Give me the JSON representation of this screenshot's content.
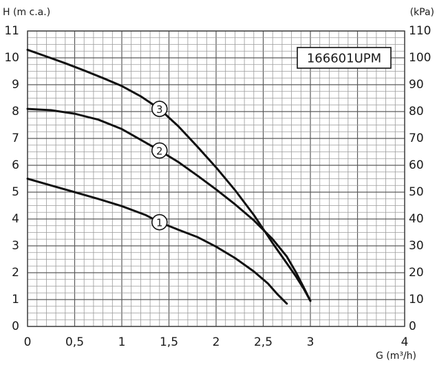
{
  "chart_data": {
    "type": "line",
    "model_label": "166601UPM",
    "y_axis_label": "H (m c.a.)",
    "y2_axis_label": "(kPa)",
    "x_axis_label": "G (m³/h)",
    "xlim": [
      0,
      4
    ],
    "ylim": [
      0,
      11
    ],
    "y2lim": [
      0,
      110
    ],
    "grid": true,
    "x_ticks": [
      {
        "value": 0,
        "label": "0"
      },
      {
        "value": 0.5,
        "label": "0,5"
      },
      {
        "value": 1,
        "label": "1"
      },
      {
        "value": 1.5,
        "label": "1,5"
      },
      {
        "value": 2,
        "label": "2"
      },
      {
        "value": 2.5,
        "label": "2,5"
      },
      {
        "value": 3,
        "label": "3"
      },
      {
        "value": 4,
        "label": "4"
      }
    ],
    "y_ticks": [
      {
        "value": 0,
        "label": "0"
      },
      {
        "value": 1,
        "label": "1"
      },
      {
        "value": 2,
        "label": "2"
      },
      {
        "value": 3,
        "label": "3"
      },
      {
        "value": 4,
        "label": "4"
      },
      {
        "value": 5,
        "label": "5"
      },
      {
        "value": 6,
        "label": "6"
      },
      {
        "value": 7,
        "label": "7"
      },
      {
        "value": 8,
        "label": "8"
      },
      {
        "value": 9,
        "label": "9"
      },
      {
        "value": 10,
        "label": "10"
      },
      {
        "value": 11,
        "label": "11"
      }
    ],
    "y2_ticks": [
      {
        "value": 0,
        "label": "0"
      },
      {
        "value": 10,
        "label": "10"
      },
      {
        "value": 20,
        "label": "20"
      },
      {
        "value": 30,
        "label": "30"
      },
      {
        "value": 40,
        "label": "40"
      },
      {
        "value": 50,
        "label": "50"
      },
      {
        "value": 60,
        "label": "60"
      },
      {
        "value": 70,
        "label": "70"
      },
      {
        "value": 80,
        "label": "80"
      },
      {
        "value": 90,
        "label": "90"
      },
      {
        "value": 100,
        "label": "100"
      },
      {
        "value": 110,
        "label": "110"
      }
    ],
    "series": [
      {
        "marker": "1",
        "marker_at": [
          1.4,
          3.88
        ],
        "points": [
          [
            0,
            5.5
          ],
          [
            0.25,
            5.25
          ],
          [
            0.5,
            5.0
          ],
          [
            0.75,
            4.75
          ],
          [
            1.0,
            4.48
          ],
          [
            1.25,
            4.15
          ],
          [
            1.4,
            3.88
          ],
          [
            1.6,
            3.6
          ],
          [
            1.8,
            3.33
          ],
          [
            2.0,
            2.97
          ],
          [
            2.2,
            2.55
          ],
          [
            2.4,
            2.05
          ],
          [
            2.55,
            1.6
          ],
          [
            2.65,
            1.2
          ],
          [
            2.75,
            0.85
          ]
        ]
      },
      {
        "marker": "2",
        "marker_at": [
          1.4,
          6.55
        ],
        "points": [
          [
            0,
            8.1
          ],
          [
            0.25,
            8.05
          ],
          [
            0.5,
            7.92
          ],
          [
            0.75,
            7.7
          ],
          [
            1.0,
            7.35
          ],
          [
            1.2,
            6.95
          ],
          [
            1.4,
            6.55
          ],
          [
            1.6,
            6.12
          ],
          [
            1.8,
            5.62
          ],
          [
            2.0,
            5.1
          ],
          [
            2.2,
            4.55
          ],
          [
            2.4,
            3.95
          ],
          [
            2.6,
            3.25
          ],
          [
            2.75,
            2.6
          ],
          [
            2.85,
            2.0
          ],
          [
            2.93,
            1.45
          ],
          [
            3.0,
            0.95
          ]
        ]
      },
      {
        "marker": "3",
        "marker_at": [
          1.4,
          8.1
        ],
        "points": [
          [
            0,
            10.3
          ],
          [
            0.2,
            10.05
          ],
          [
            0.4,
            9.8
          ],
          [
            0.6,
            9.53
          ],
          [
            0.8,
            9.25
          ],
          [
            1.0,
            8.95
          ],
          [
            1.2,
            8.57
          ],
          [
            1.4,
            8.1
          ],
          [
            1.6,
            7.45
          ],
          [
            1.8,
            6.7
          ],
          [
            2.0,
            5.92
          ],
          [
            2.2,
            5.08
          ],
          [
            2.4,
            4.15
          ],
          [
            2.6,
            3.1
          ],
          [
            2.75,
            2.35
          ],
          [
            2.85,
            1.85
          ],
          [
            2.93,
            1.4
          ],
          [
            3.0,
            0.95
          ]
        ]
      }
    ]
  }
}
